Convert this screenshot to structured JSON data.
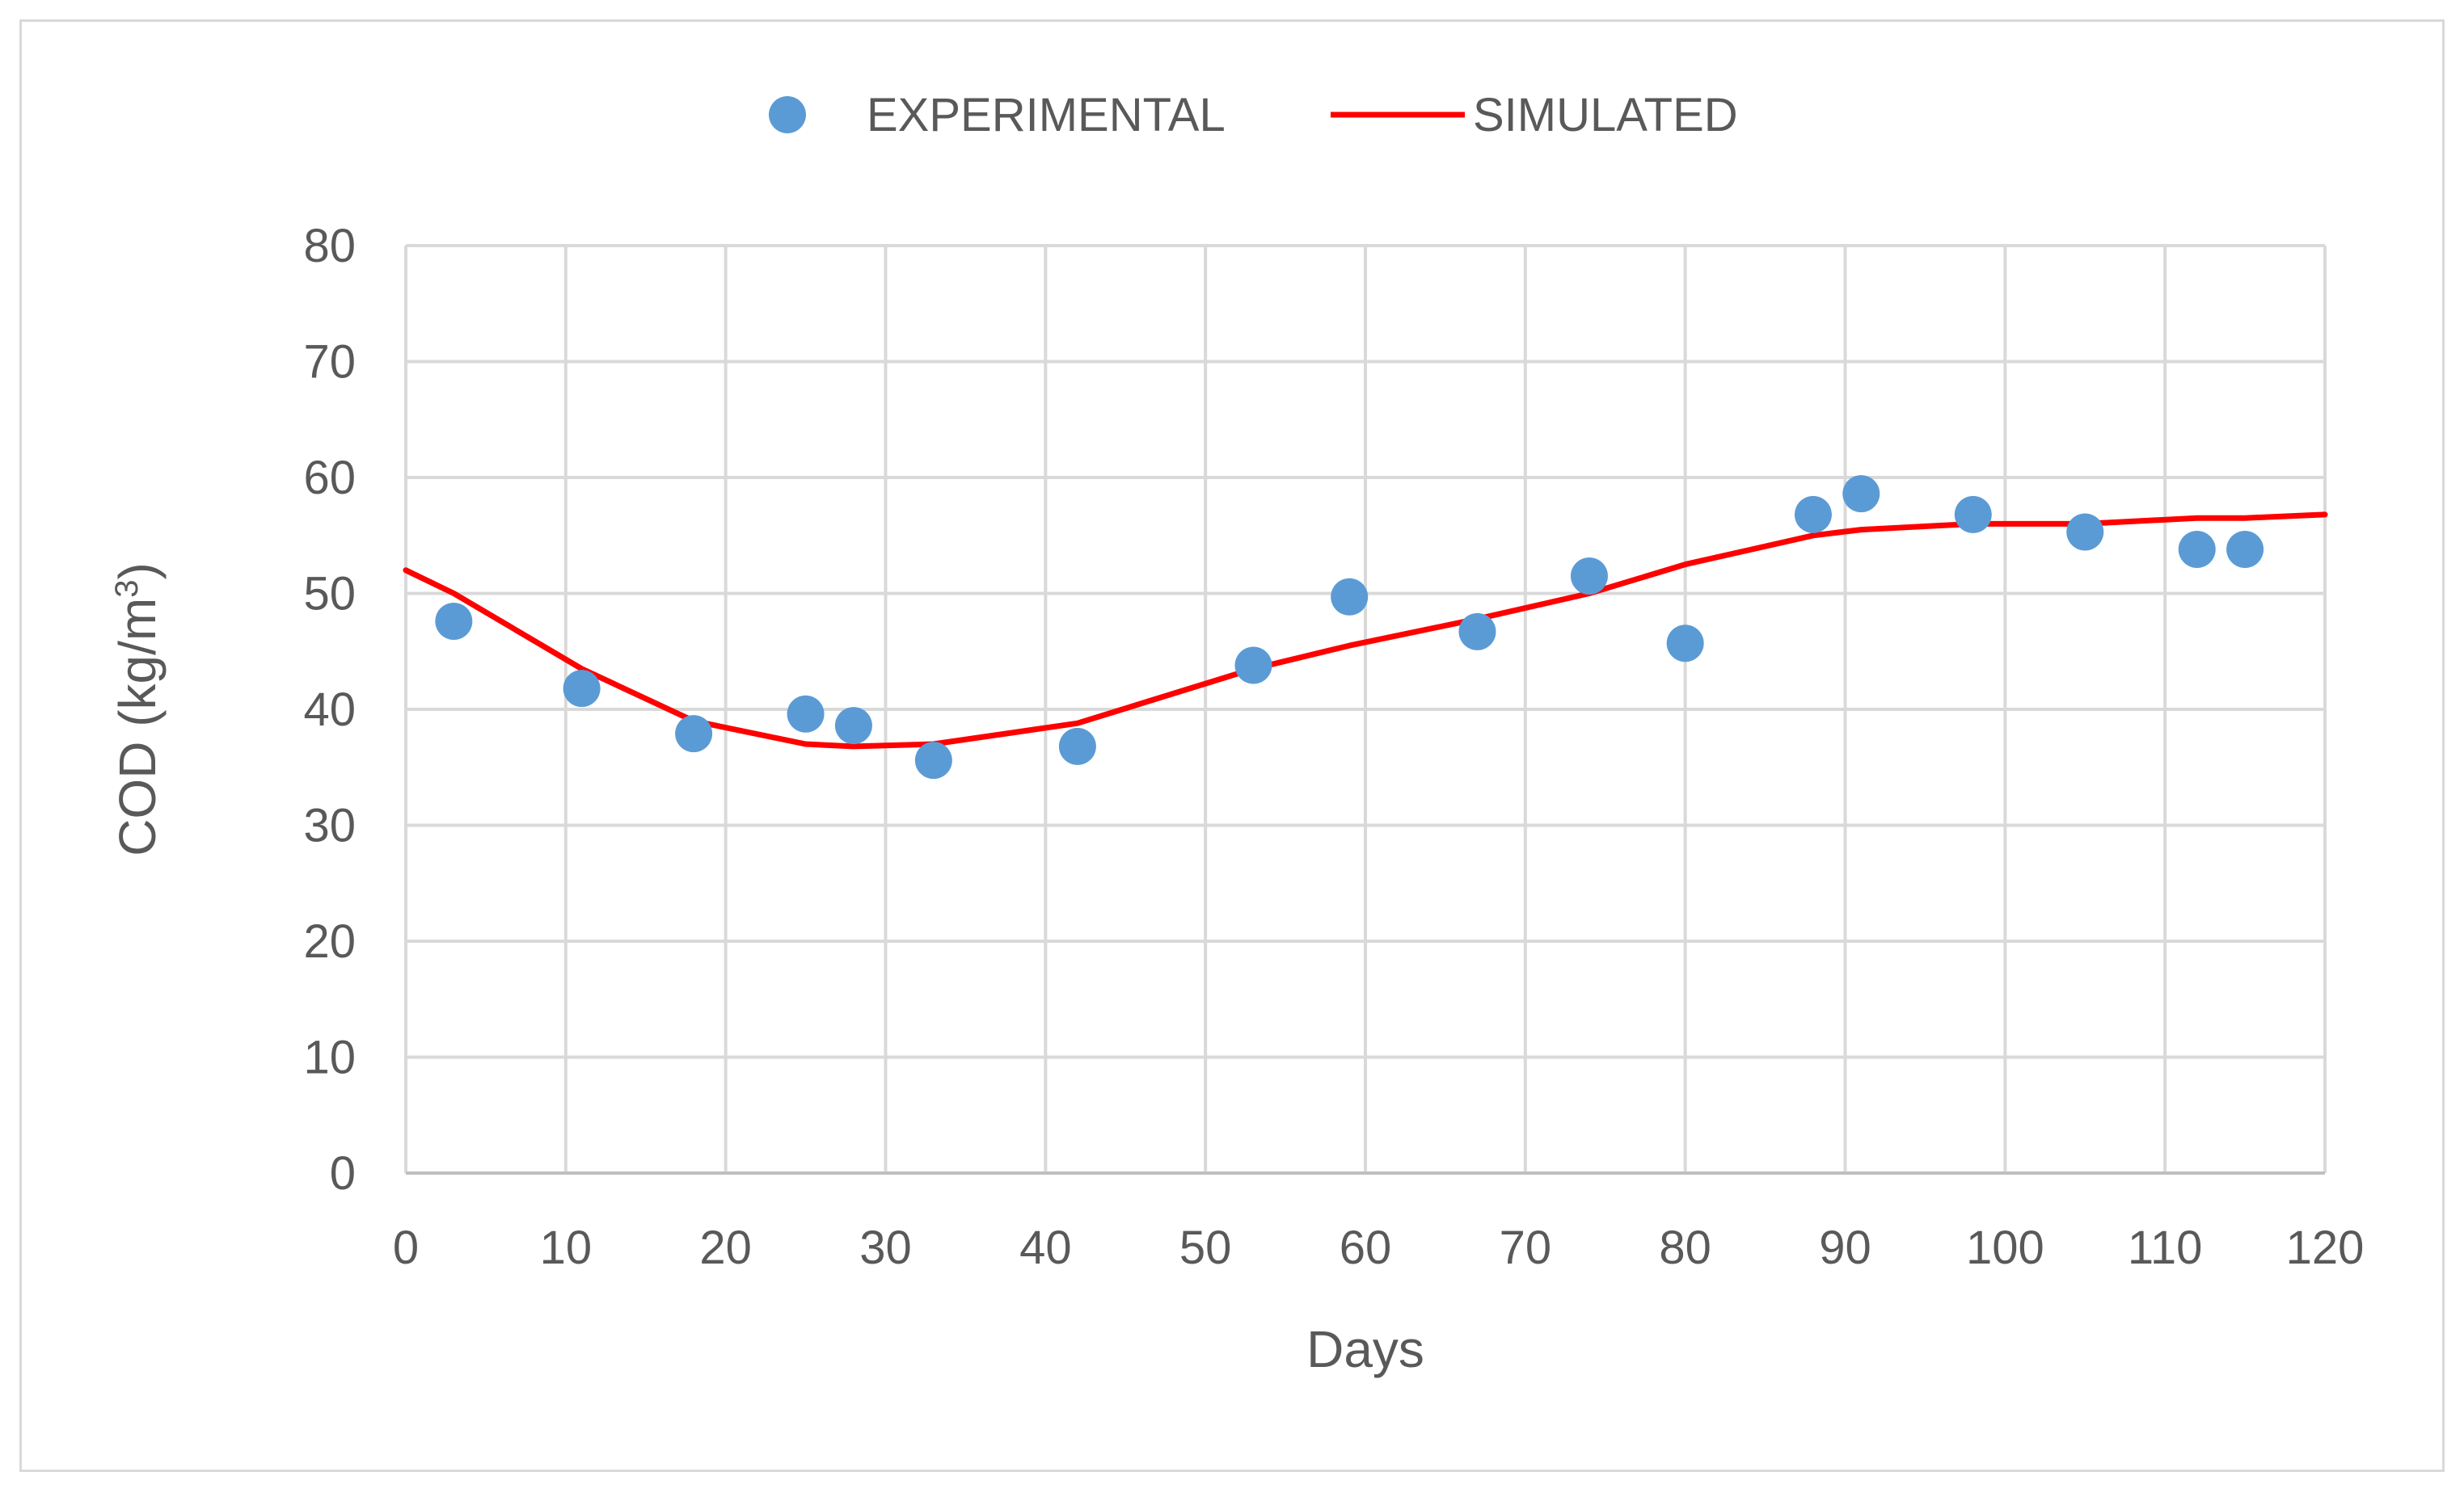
{
  "chart_data": {
    "type": "scatter",
    "title": "",
    "xlabel": "Days",
    "ylabel_prefix": "COD (kg/m",
    "ylabel_sup": "3",
    "ylabel_suffix": ")",
    "xlim": [
      0,
      120
    ],
    "ylim": [
      0,
      80
    ],
    "x_ticks": [
      0,
      10,
      20,
      30,
      40,
      50,
      60,
      70,
      80,
      90,
      100,
      110,
      120
    ],
    "y_ticks": [
      0,
      10,
      20,
      30,
      40,
      50,
      60,
      70,
      80
    ],
    "grid": true,
    "legend_position": "top-center",
    "series": [
      {
        "name": "EXPERIMENTAL",
        "kind": "markers",
        "color": "#5b9bd5",
        "x": [
          3,
          11,
          18,
          25,
          28,
          33,
          42,
          53,
          59,
          67,
          74,
          80,
          88,
          91,
          98,
          105,
          112,
          115
        ],
        "y": [
          47.6,
          41.8,
          37.9,
          39.6,
          38.6,
          35.6,
          36.8,
          43.8,
          49.7,
          46.7,
          51.5,
          45.7,
          56.8,
          58.6,
          56.8,
          55.3,
          53.8,
          53.8
        ]
      },
      {
        "name": "SIMULATED",
        "kind": "line",
        "color": "#ff0000",
        "x": [
          0,
          3,
          11,
          18,
          25,
          28,
          33,
          42,
          53,
          59,
          67,
          74,
          80,
          88,
          91,
          98,
          105,
          112,
          115,
          120
        ],
        "y": [
          52,
          50,
          43.5,
          39,
          37,
          36.8,
          37,
          38.8,
          43.5,
          45.5,
          47.8,
          50,
          52.5,
          55,
          55.5,
          56,
          56,
          56.5,
          56.5,
          56.8
        ]
      }
    ]
  }
}
